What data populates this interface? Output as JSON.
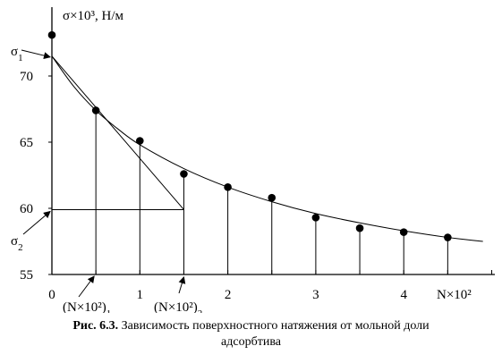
{
  "chart_data": {
    "type": "scatter",
    "y_axis_label": "σ×10³, Н/м",
    "x_axis_label": "N×10²",
    "x_ticks": [
      {
        "value": 0,
        "label": "0"
      },
      {
        "value": 1,
        "label": "1"
      },
      {
        "value": 2,
        "label": "2"
      },
      {
        "value": 3,
        "label": "3"
      },
      {
        "value": 4,
        "label": "4"
      }
    ],
    "y_ticks": [
      {
        "value": 55,
        "label": "55"
      },
      {
        "value": 60,
        "label": "60"
      },
      {
        "value": 65,
        "label": "65"
      },
      {
        "value": 70,
        "label": "70"
      }
    ],
    "xlim": [
      0,
      5
    ],
    "ylim": [
      55,
      75
    ],
    "points": [
      {
        "x": 0,
        "y": 73.1
      },
      {
        "x": 0.5,
        "y": 67.4
      },
      {
        "x": 1.0,
        "y": 65.1
      },
      {
        "x": 1.5,
        "y": 62.6
      },
      {
        "x": 2.0,
        "y": 61.6
      },
      {
        "x": 2.5,
        "y": 60.8
      },
      {
        "x": 3.0,
        "y": 59.3
      },
      {
        "x": 3.5,
        "y": 58.5
      },
      {
        "x": 4.0,
        "y": 58.2
      },
      {
        "x": 4.5,
        "y": 57.8
      }
    ],
    "curve": [
      {
        "x": 0,
        "y": 71.5
      },
      {
        "x": 0.25,
        "y": 69.2
      },
      {
        "x": 0.5,
        "y": 67.4
      },
      {
        "x": 0.75,
        "y": 66.0
      },
      {
        "x": 1.0,
        "y": 64.8
      },
      {
        "x": 1.5,
        "y": 63.0
      },
      {
        "x": 2.0,
        "y": 61.6
      },
      {
        "x": 2.5,
        "y": 60.5
      },
      {
        "x": 3.0,
        "y": 59.6
      },
      {
        "x": 3.5,
        "y": 58.9
      },
      {
        "x": 4.0,
        "y": 58.3
      },
      {
        "x": 4.5,
        "y": 57.8
      },
      {
        "x": 4.9,
        "y": 57.5
      }
    ],
    "tangent": {
      "x1": 0,
      "y1": 71.5,
      "x2": 1.5,
      "y2": 59.9
    },
    "horizontal_line": {
      "y": 59.9,
      "x1": 0,
      "x2": 1.5
    },
    "annotations": {
      "sigma1": {
        "text": "σ",
        "sub": "1",
        "y": 71.5
      },
      "sigma2": {
        "text": "σ",
        "sub": "2",
        "y": 59.9
      },
      "n1": {
        "text": "(N×10²)",
        "sub": "1",
        "x": 0.5
      },
      "n2": {
        "text": "(N×10²)",
        "sub": "2",
        "x": 1.5
      }
    }
  },
  "caption": {
    "label": "Рис. 6.3.",
    "line1": " Зависимость поверхностного натяжения от мольной доли",
    "line2": "адсорбтива"
  }
}
